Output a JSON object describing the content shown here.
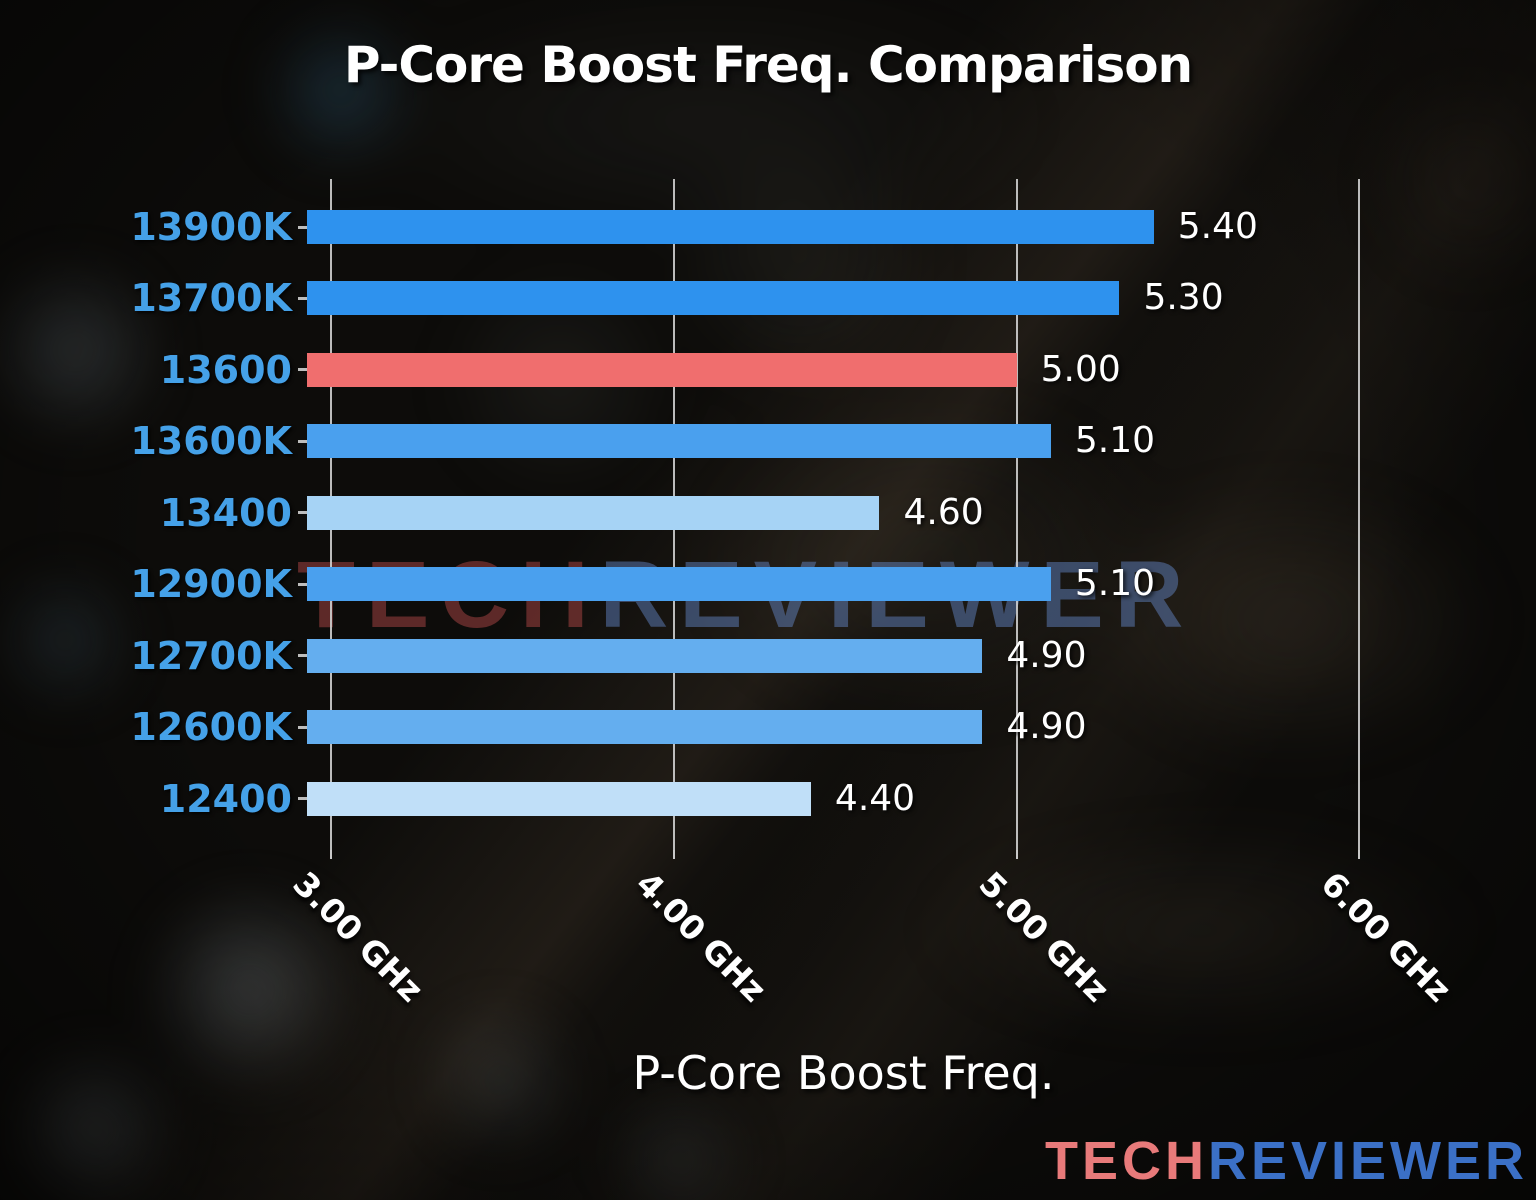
{
  "chart_data": {
    "type": "bar",
    "orientation": "horizontal",
    "title": "P-Core Boost Freq. Comparison",
    "xlabel": "P-Core Boost Freq.",
    "categories": [
      "13900K",
      "13700K",
      "13600",
      "13600K",
      "13400",
      "12900K",
      "12700K",
      "12600K",
      "12400"
    ],
    "values": [
      5.4,
      5.3,
      5.0,
      5.1,
      4.6,
      5.1,
      4.9,
      4.9,
      4.4
    ],
    "value_labels": [
      "5.40",
      "5.30",
      "5.00",
      "5.10",
      "4.60",
      "5.10",
      "4.90",
      "4.90",
      "4.40"
    ],
    "bar_colors": [
      "#2e92ee",
      "#2e92ee",
      "#f06e6e",
      "#4aa0ee",
      "#a6d3f5",
      "#4aa0ee",
      "#64aeef",
      "#64aeef",
      "#c0dff8"
    ],
    "highlight_index": 2,
    "highlight_color": "#f06e6e",
    "xlim": [
      2.93,
      6.06
    ],
    "xticks": [
      3.0,
      4.0,
      5.0,
      6.0
    ],
    "xtick_labels": [
      "3.00 GHz",
      "4.00 GHz",
      "5.00 GHz",
      "6.00 GHz"
    ],
    "grid": true,
    "legend": false,
    "category_label_color": "#45a1e8",
    "value_label_color": "#ffffff"
  },
  "watermark": {
    "tech": "TECH",
    "reviewer": "REVIEWER"
  },
  "logo": {
    "tech": "TECH",
    "reviewer": "REVIEWER"
  }
}
